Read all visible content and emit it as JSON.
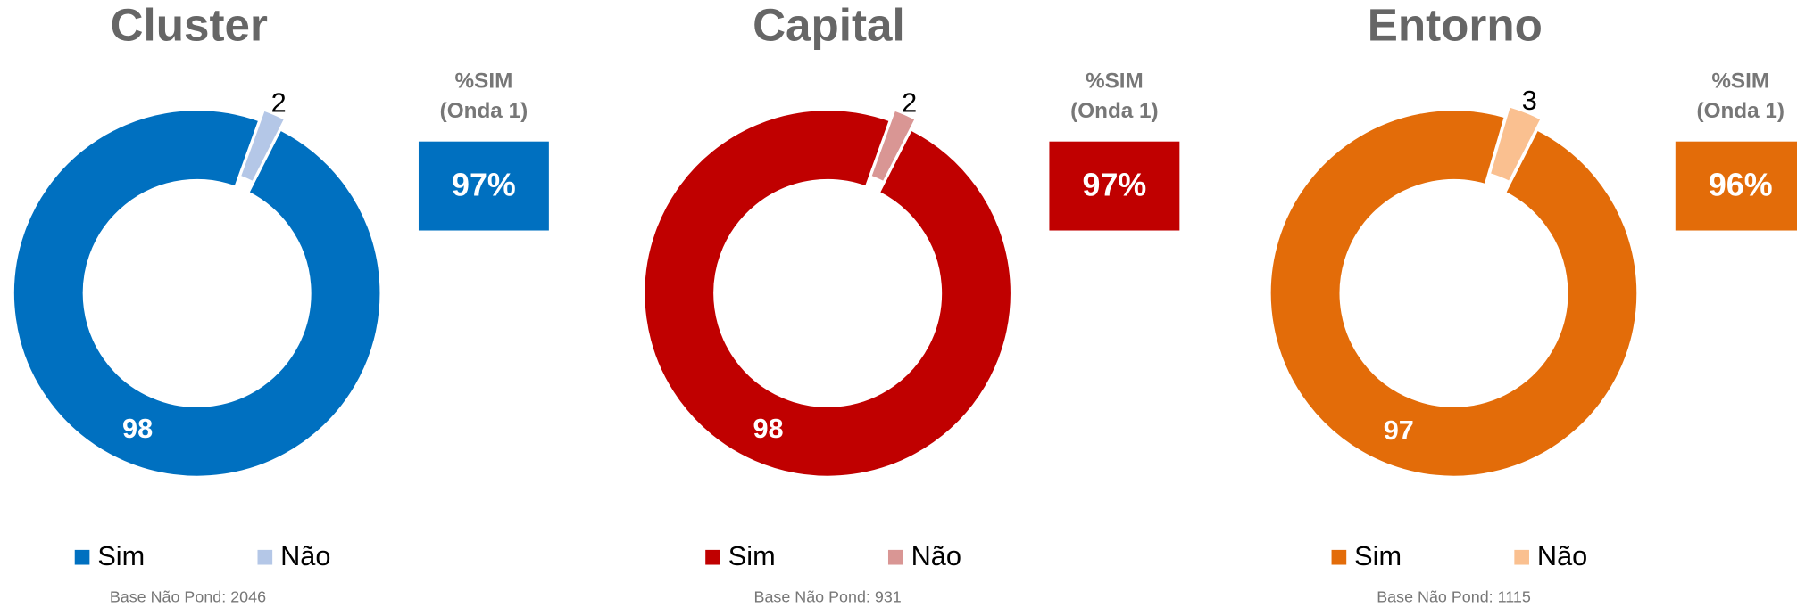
{
  "chart_data": [
    {
      "type": "donut",
      "title": "Cluster",
      "categories": [
        "Sim",
        "Não"
      ],
      "values": [
        98,
        2
      ],
      "colors": [
        "#0070C0",
        "#B4C7E7"
      ],
      "kpi_title": [
        "%SIM",
        "(Onda 1)"
      ],
      "kpi_value": 97,
      "kpi_value_label": "97%",
      "footnote": "Base Não Pond: 2046"
    },
    {
      "type": "donut",
      "title": "Capital",
      "categories": [
        "Sim",
        "Não"
      ],
      "values": [
        98,
        2
      ],
      "colors": [
        "#C00000",
        "#D99694"
      ],
      "kpi_title": [
        "%SIM",
        "(Onda 1)"
      ],
      "kpi_value": 97,
      "kpi_value_label": "97%",
      "footnote": "Base Não Pond: 931"
    },
    {
      "type": "donut",
      "title": "Entorno",
      "categories": [
        "Sim",
        "Não"
      ],
      "values": [
        97,
        3
      ],
      "colors": [
        "#E36C09",
        "#FAC090"
      ],
      "kpi_title": [
        "%SIM",
        "(Onda 1)"
      ],
      "kpi_value": 96,
      "kpi_value_label": "96%",
      "footnote": "Base Não Pond: 1115"
    }
  ]
}
